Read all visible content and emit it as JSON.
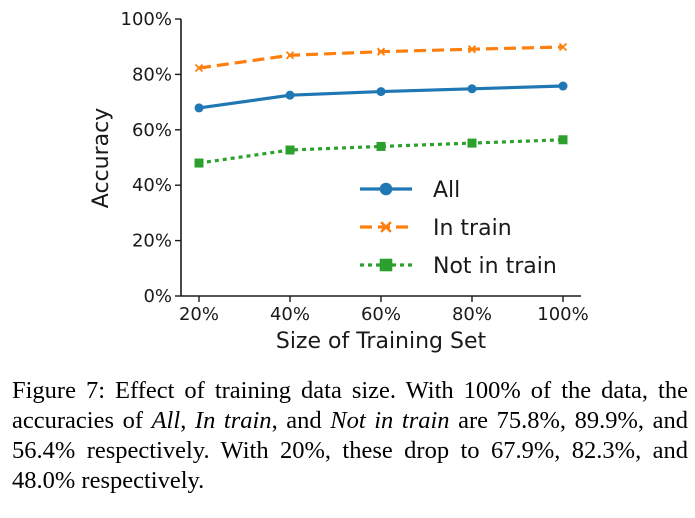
{
  "chart_data": {
    "type": "line",
    "title": "",
    "xlabel": "Size of Training Set",
    "ylabel": "Accuracy",
    "categories": [
      "20%",
      "40%",
      "60%",
      "80%",
      "100%"
    ],
    "x": [
      20,
      40,
      60,
      80,
      100
    ],
    "xlim": [
      20,
      100
    ],
    "ylim": [
      0,
      100
    ],
    "yticks": [
      0,
      20,
      40,
      60,
      80,
      100
    ],
    "ytick_labels": [
      "0%",
      "20%",
      "40%",
      "60%",
      "80%",
      "100%"
    ],
    "grid": false,
    "legend_position": "lower-right",
    "series": [
      {
        "name": "All",
        "values": [
          67.9,
          72.5,
          73.8,
          74.8,
          75.8
        ],
        "color": "#1f77b4",
        "style": "solid",
        "marker": "circle"
      },
      {
        "name": "In train",
        "values": [
          82.3,
          86.9,
          88.2,
          89.1,
          89.9
        ],
        "color": "#ff7f0e",
        "style": "dashed",
        "marker": "x"
      },
      {
        "name": "Not in train",
        "values": [
          48.0,
          52.7,
          54.0,
          55.2,
          56.4
        ],
        "color": "#2ca02c",
        "style": "dotted",
        "marker": "square"
      }
    ]
  },
  "caption": {
    "prefix": "Figure 7: Effect of training data size. With 100% of the data, the accuracies of ",
    "s1": "All",
    "sep1": ", ",
    "s2": "In train",
    "sep2": ", and ",
    "s3": "Not in train",
    "suffix": " are 75.8%, 89.9%, and 56.4% respectively. With 20%, these drop to 67.9%, 82.3%, and 48.0% respectively."
  }
}
